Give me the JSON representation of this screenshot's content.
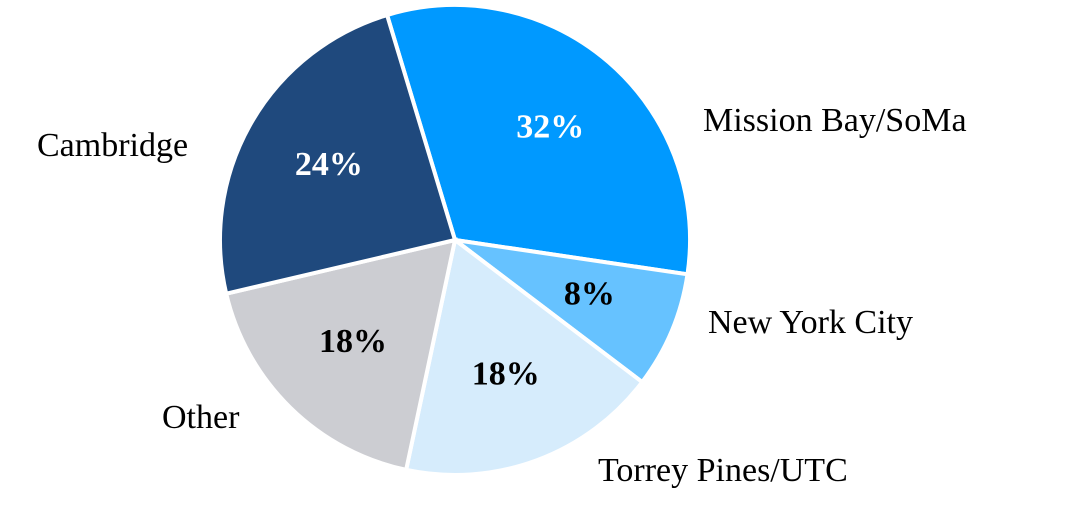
{
  "chart_data": {
    "type": "pie",
    "categories": [
      "Mission Bay/SoMa",
      "New York City",
      "Torrey Pines/UTC",
      "Other",
      "Cambridge"
    ],
    "values": [
      32,
      8,
      18,
      18,
      24
    ],
    "value_labels": [
      "32%",
      "8%",
      "18%",
      "18%",
      "24%"
    ],
    "colors": [
      "#0099ff",
      "#66c2ff",
      "#d6ecfc",
      "#cccdd2",
      "#1f497d"
    ]
  }
}
